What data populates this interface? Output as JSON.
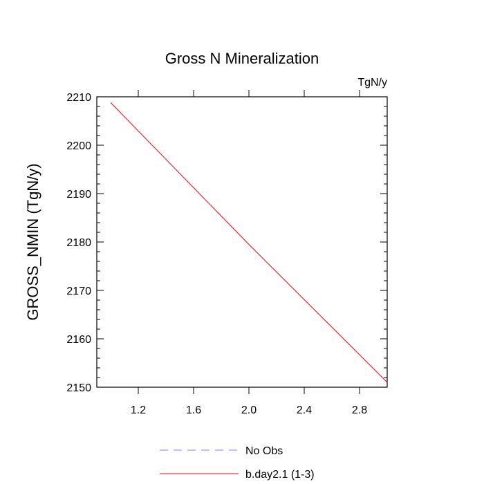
{
  "chart_data": {
    "type": "line",
    "title": "Gross N Mineralization",
    "units_label": "TgN/y",
    "xlabel": "",
    "ylabel": "GROSS_NMIN  (TgN/y)",
    "xlim": [
      0.9,
      3.0
    ],
    "ylim": [
      2150,
      2210
    ],
    "x_ticks": [
      1.2,
      1.6,
      2.0,
      2.4,
      2.8
    ],
    "x_tick_labels": [
      "1.2",
      "1.6",
      "2.0",
      "2.4",
      "2.8"
    ],
    "y_ticks": [
      2150,
      2160,
      2170,
      2180,
      2190,
      2200,
      2210
    ],
    "y_tick_labels": [
      "2150",
      "2160",
      "2170",
      "2180",
      "2190",
      "2200",
      "2210"
    ],
    "grid": false,
    "legend_position": "bottom",
    "series": [
      {
        "name": "No Obs",
        "color": "#8080ff",
        "dash": "dashed",
        "x": [],
        "y": []
      },
      {
        "name": "b.day2.1 (1-3)",
        "color": "#ff0000",
        "dash": "solid",
        "x": [
          1.0,
          2.0,
          3.0
        ],
        "y": [
          2208.8,
          2179.5,
          2151.0
        ]
      }
    ]
  }
}
